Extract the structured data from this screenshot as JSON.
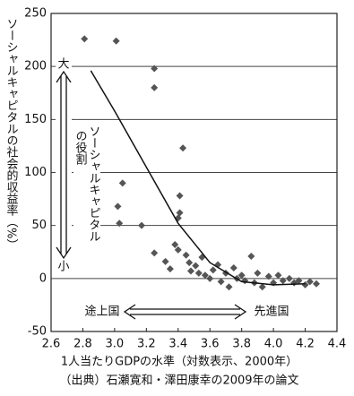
{
  "chart_data": {
    "type": "scatter",
    "ylabel": "ソーシャルキャピタルの社会的収益率（%）",
    "xlabel": "1人当たりGDPの水準（対数表示、2000年）",
    "source": "（出典）石瀬寛和・澤田康幸の2009年の論文",
    "annotations": [
      "大",
      "小",
      "ソーシャルキャピタル",
      "の役割",
      "途上国",
      "先進国"
    ],
    "xlim": [
      2.6,
      4.4
    ],
    "xticks": [
      2.6,
      2.8,
      {
        "value": 3.0,
        "label": "3.0"
      },
      3.2,
      3.4,
      3.6,
      3.8,
      {
        "value": 4.0,
        "label": "4.0"
      },
      4.2,
      4.4
    ],
    "ylim": [
      -50,
      250
    ],
    "yticks": [
      -50,
      0,
      50,
      100,
      150,
      200,
      250
    ],
    "grid": true,
    "series": [
      {
        "color": "#555555",
        "marker": "diamond",
        "x": [
          2.81,
          3.01,
          3.25,
          3.25,
          3.43,
          3.41,
          3.41,
          3.4,
          3.05,
          3.02,
          3.03,
          3.17,
          3.25,
          3.32,
          3.35,
          3.38,
          3.4,
          3.45,
          3.47,
          3.48,
          3.51,
          3.53,
          3.55,
          3.57,
          3.6,
          3.62,
          3.65,
          3.67,
          3.7,
          3.72,
          3.75,
          3.77,
          3.8,
          3.82,
          3.86,
          3.88,
          3.9,
          3.93,
          3.97,
          4.0,
          4.03,
          4.06,
          4.1,
          4.13,
          4.16,
          4.2,
          4.23,
          4.27
        ],
        "values": [
          226,
          224,
          198,
          180,
          123,
          78,
          62,
          57,
          90,
          68,
          52,
          50,
          24,
          16,
          9,
          32,
          27,
          22,
          15,
          7,
          12,
          5,
          20,
          3,
          0,
          8,
          13,
          -3,
          5,
          -8,
          10,
          0,
          3,
          -2,
          21,
          -4,
          5,
          -8,
          2,
          -4,
          3,
          -2,
          0,
          -4,
          -2,
          -6,
          -3,
          -5
        ]
      },
      {
        "color": "#111111",
        "style": "line",
        "x": [
          2.85,
          3.0,
          3.2,
          3.4,
          3.6,
          3.8,
          4.0,
          4.2
        ],
        "values": [
          196,
          158,
          105,
          52,
          15,
          -3,
          -6,
          -5
        ]
      }
    ]
  }
}
